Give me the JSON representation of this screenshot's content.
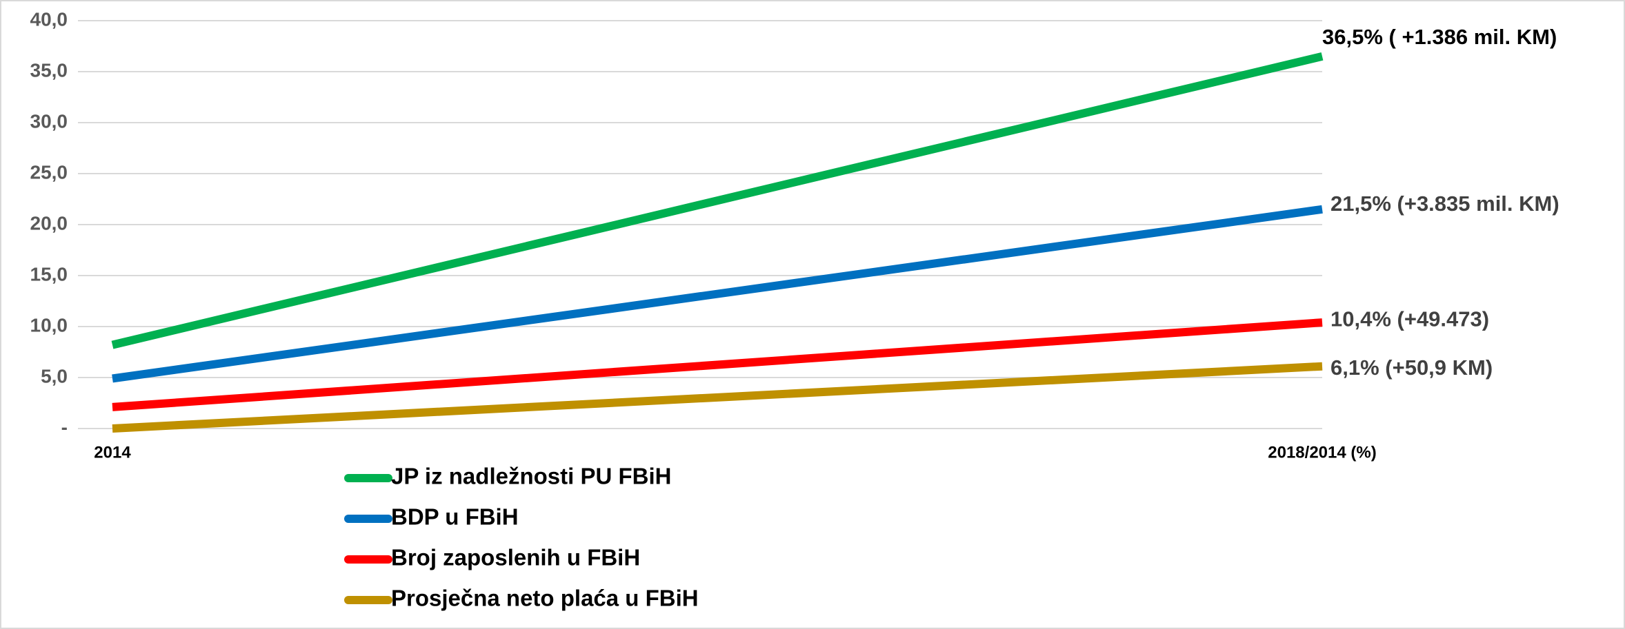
{
  "chart_data": {
    "type": "line",
    "categories": [
      "2014",
      "2018/2014 (%)"
    ],
    "series": [
      {
        "name": "JP iz nadležnosti PU FBiH",
        "color": "#00b050",
        "values": [
          8.2,
          36.5
        ],
        "value_labels": [
          null,
          "36,5%  ( +1.386 mil. KM)"
        ]
      },
      {
        "name": "BDP u FBiH",
        "color": "#0070c0",
        "values": [
          4.9,
          21.5
        ],
        "value_labels": [
          null,
          "21,5% (+3.835 mil. KM)"
        ]
      },
      {
        "name": "Broj zaposlenih u FBiH",
        "color": "#ff0000",
        "values": [
          2.1,
          10.4
        ],
        "value_labels": [
          null,
          "10,4%  (+49.473)"
        ]
      },
      {
        "name": "Prosječna neto plaća u FBiH",
        "color": "#bf9000",
        "values": [
          0,
          6.1
        ],
        "value_labels": [
          null,
          "6,1% (+50,9 KM)"
        ]
      }
    ],
    "ylim": [
      0,
      40
    ],
    "yticks": [
      {
        "value": 0,
        "label": "-"
      },
      {
        "value": 5,
        "label": "5,0"
      },
      {
        "value": 10,
        "label": "10,0"
      },
      {
        "value": 15,
        "label": "15,0"
      },
      {
        "value": 20,
        "label": "20,0"
      },
      {
        "value": 25,
        "label": "25,0"
      },
      {
        "value": 30,
        "label": "30,0"
      },
      {
        "value": 35,
        "label": "35,0"
      },
      {
        "value": 40,
        "label": "40,0"
      }
    ],
    "grid": true
  }
}
